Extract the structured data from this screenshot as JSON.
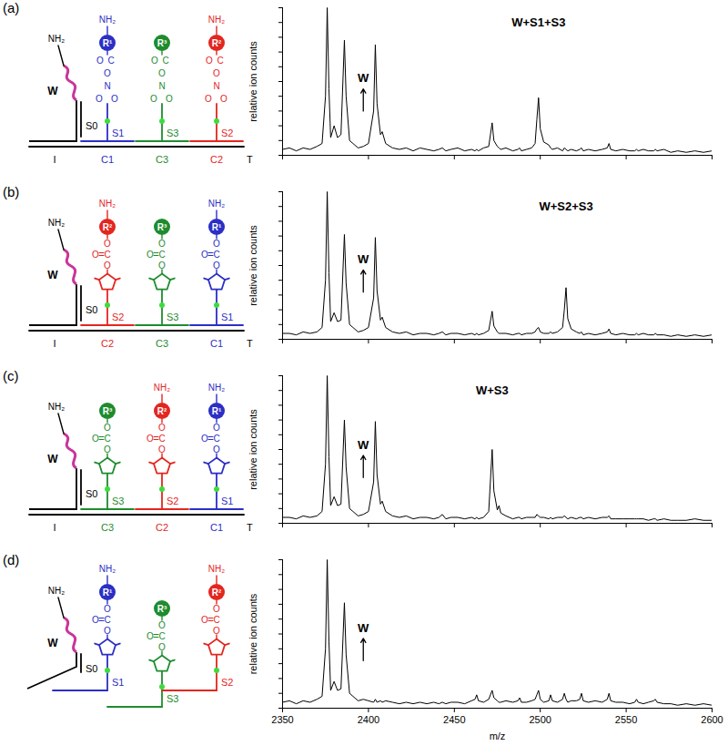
{
  "chart_data": [
    {
      "type": "line",
      "title": "(a)",
      "y_label": "relative ion counts",
      "color": "#000000",
      "xlim": [
        2350,
        2600
      ],
      "xticks": [
        2350,
        2400,
        2450,
        2500,
        2550,
        2600
      ],
      "ylim": [
        0,
        100
      ],
      "yticks": [
        0,
        10,
        20,
        30,
        40,
        50,
        60,
        70,
        80,
        90,
        100
      ],
      "tick_labels": false,
      "x": [
        2350,
        2354,
        2358,
        2362,
        2366,
        2370,
        2373,
        2375,
        2376,
        2377,
        2378,
        2380,
        2382,
        2384,
        2386,
        2387,
        2389,
        2391,
        2394,
        2397,
        2400,
        2403,
        2404,
        2405,
        2407,
        2408,
        2410,
        2414,
        2418,
        2422,
        2426,
        2430,
        2434,
        2438,
        2441,
        2443,
        2445,
        2448,
        2452,
        2456,
        2460,
        2462,
        2463,
        2464,
        2467,
        2470,
        2472,
        2473,
        2475,
        2476,
        2477,
        2480,
        2484,
        2487,
        2488,
        2489,
        2492,
        2495,
        2497,
        2498,
        2499,
        2500,
        2502,
        2505,
        2506,
        2507,
        2510,
        2513,
        2514,
        2515,
        2516,
        2518,
        2521,
        2523,
        2524,
        2525,
        2528,
        2532,
        2536,
        2539,
        2540,
        2541,
        2544,
        2548,
        2552,
        2555,
        2556,
        2557,
        2560,
        2563,
        2566,
        2567,
        2568,
        2572,
        2576,
        2580,
        2585,
        2590,
        2595,
        2600
      ],
      "values": [
        4,
        5,
        3,
        5,
        4,
        6,
        8,
        40,
        100,
        45,
        12,
        20,
        12,
        14,
        78,
        40,
        10,
        8,
        5,
        6,
        8,
        30,
        75,
        35,
        14,
        16,
        8,
        5,
        4,
        5,
        3,
        5,
        4,
        3,
        4,
        5,
        3,
        4,
        5,
        3,
        4,
        3,
        4,
        3,
        5,
        6,
        22,
        10,
        6,
        5,
        4,
        5,
        3,
        4,
        5,
        3,
        4,
        5,
        8,
        24,
        39,
        18,
        9,
        7,
        5,
        4,
        5,
        3,
        5,
        4,
        3,
        4,
        3,
        4,
        5,
        3,
        4,
        3,
        4,
        5,
        8,
        4,
        3,
        4,
        3,
        3,
        4,
        3,
        4,
        3,
        3,
        4,
        3,
        4,
        2,
        3,
        2,
        3,
        2,
        3
      ],
      "annotations": [
        {
          "text": "W",
          "x": 2397,
          "y": 52,
          "marker": "arrow"
        },
        {
          "text": "W+S1+S3",
          "x": 2499,
          "y": 90
        }
      ]
    },
    {
      "type": "line",
      "title": "(b)",
      "y_label": "relative ion counts",
      "color": "#000000",
      "xlim": [
        2350,
        2600
      ],
      "xticks": [
        2350,
        2400,
        2450,
        2500,
        2550,
        2600
      ],
      "ylim": [
        0,
        100
      ],
      "yticks": [
        0,
        10,
        20,
        30,
        40,
        50,
        60,
        70,
        80,
        90,
        100
      ],
      "tick_labels": false,
      "x": [
        2350,
        2354,
        2358,
        2362,
        2366,
        2370,
        2373,
        2375,
        2376,
        2377,
        2378,
        2380,
        2382,
        2384,
        2386,
        2387,
        2389,
        2391,
        2394,
        2397,
        2400,
        2403,
        2404,
        2405,
        2407,
        2408,
        2410,
        2414,
        2418,
        2422,
        2426,
        2430,
        2434,
        2438,
        2441,
        2443,
        2445,
        2448,
        2452,
        2456,
        2460,
        2462,
        2463,
        2464,
        2467,
        2470,
        2472,
        2473,
        2475,
        2476,
        2477,
        2480,
        2484,
        2487,
        2488,
        2489,
        2492,
        2495,
        2497,
        2498,
        2499,
        2500,
        2502,
        2505,
        2506,
        2507,
        2510,
        2513,
        2514,
        2515,
        2516,
        2518,
        2521,
        2523,
        2524,
        2525,
        2528,
        2532,
        2536,
        2539,
        2540,
        2541,
        2544,
        2548,
        2552,
        2555,
        2556,
        2557,
        2560,
        2563,
        2566,
        2567,
        2568,
        2572,
        2576,
        2580,
        2585,
        2590,
        2595,
        2600
      ],
      "values": [
        4,
        4,
        3,
        5,
        4,
        5,
        8,
        40,
        100,
        45,
        12,
        18,
        12,
        13,
        71,
        38,
        10,
        8,
        5,
        6,
        8,
        28,
        69,
        33,
        13,
        15,
        8,
        5,
        4,
        5,
        3,
        4,
        4,
        3,
        4,
        5,
        3,
        4,
        4,
        3,
        4,
        3,
        4,
        3,
        4,
        6,
        19,
        9,
        5,
        4,
        4,
        4,
        3,
        4,
        4,
        3,
        4,
        4,
        5,
        7,
        8,
        5,
        4,
        4,
        5,
        4,
        5,
        8,
        20,
        35,
        14,
        7,
        5,
        4,
        5,
        3,
        4,
        3,
        4,
        5,
        7,
        4,
        3,
        4,
        3,
        3,
        4,
        3,
        4,
        3,
        3,
        4,
        3,
        3,
        2,
        3,
        2,
        3,
        2,
        3
      ],
      "annotations": [
        {
          "text": "W",
          "x": 2397,
          "y": 54,
          "marker": "arrow"
        },
        {
          "text": "W+S2+S3",
          "x": 2515,
          "y": 90
        }
      ]
    },
    {
      "type": "line",
      "title": "(c)",
      "y_label": "relative ion counts",
      "color": "#000000",
      "xlim": [
        2350,
        2600
      ],
      "xticks": [
        2350,
        2400,
        2450,
        2500,
        2550,
        2600
      ],
      "ylim": [
        0,
        100
      ],
      "yticks": [
        0,
        10,
        20,
        30,
        40,
        50,
        60,
        70,
        80,
        90,
        100
      ],
      "tick_labels": false,
      "x": [
        2350,
        2354,
        2358,
        2362,
        2366,
        2370,
        2373,
        2375,
        2376,
        2377,
        2378,
        2380,
        2382,
        2384,
        2386,
        2387,
        2389,
        2391,
        2394,
        2397,
        2400,
        2403,
        2404,
        2405,
        2407,
        2408,
        2410,
        2414,
        2418,
        2422,
        2426,
        2430,
        2434,
        2438,
        2441,
        2443,
        2445,
        2448,
        2452,
        2456,
        2460,
        2462,
        2463,
        2464,
        2467,
        2470,
        2472,
        2473,
        2475,
        2476,
        2477,
        2480,
        2484,
        2487,
        2488,
        2489,
        2492,
        2495,
        2497,
        2498,
        2499,
        2500,
        2502,
        2505,
        2506,
        2507,
        2510,
        2513,
        2514,
        2515,
        2516,
        2518,
        2521,
        2523,
        2524,
        2525,
        2528,
        2532,
        2536,
        2539,
        2540,
        2541,
        2544,
        2548,
        2552,
        2555,
        2556,
        2557,
        2560,
        2563,
        2566,
        2567,
        2568,
        2572,
        2576,
        2580,
        2585,
        2590,
        2595,
        2600
      ],
      "values": [
        4,
        4,
        3,
        5,
        4,
        5,
        8,
        40,
        100,
        45,
        12,
        18,
        12,
        13,
        70,
        38,
        10,
        8,
        5,
        6,
        8,
        28,
        69,
        33,
        13,
        15,
        8,
        5,
        4,
        5,
        3,
        4,
        4,
        3,
        4,
        6,
        3,
        4,
        4,
        3,
        4,
        3,
        4,
        3,
        4,
        8,
        50,
        22,
        9,
        12,
        7,
        5,
        3,
        4,
        4,
        3,
        4,
        4,
        4,
        6,
        5,
        4,
        4,
        3,
        4,
        3,
        4,
        4,
        5,
        4,
        3,
        4,
        3,
        4,
        4,
        3,
        4,
        3,
        4,
        4,
        5,
        3,
        3,
        3,
        3,
        3,
        3,
        3,
        3,
        2,
        3,
        3,
        2,
        3,
        2,
        2,
        2,
        3,
        2,
        2
      ],
      "annotations": [
        {
          "text": "W",
          "x": 2397,
          "y": 53,
          "marker": "arrow"
        },
        {
          "text": "W+S3",
          "x": 2472,
          "y": 90
        }
      ]
    },
    {
      "type": "line",
      "title": "(d)",
      "y_label": "relative ion counts",
      "x_label": "m/z",
      "color": "#000000",
      "xlim": [
        2350,
        2600
      ],
      "xticks": [
        2350,
        2400,
        2450,
        2500,
        2550,
        2600
      ],
      "ylim": [
        0,
        100
      ],
      "yticks": [
        0,
        10,
        20,
        30,
        40,
        50,
        60,
        70,
        80,
        90,
        100
      ],
      "tick_labels": "x",
      "x": [
        2350,
        2354,
        2358,
        2362,
        2366,
        2370,
        2373,
        2375,
        2376,
        2377,
        2378,
        2380,
        2382,
        2384,
        2386,
        2387,
        2389,
        2391,
        2394,
        2397,
        2400,
        2403,
        2404,
        2405,
        2407,
        2408,
        2410,
        2414,
        2418,
        2422,
        2426,
        2430,
        2434,
        2438,
        2441,
        2443,
        2445,
        2448,
        2452,
        2456,
        2460,
        2462,
        2463,
        2464,
        2467,
        2470,
        2472,
        2473,
        2475,
        2476,
        2477,
        2480,
        2484,
        2487,
        2488,
        2489,
        2492,
        2495,
        2497,
        2498,
        2499,
        2500,
        2502,
        2505,
        2506,
        2507,
        2510,
        2513,
        2514,
        2515,
        2516,
        2518,
        2521,
        2523,
        2524,
        2525,
        2528,
        2532,
        2536,
        2539,
        2540,
        2541,
        2544,
        2548,
        2552,
        2555,
        2556,
        2557,
        2560,
        2563,
        2566,
        2567,
        2568,
        2572,
        2576,
        2580,
        2585,
        2590,
        2595,
        2600
      ],
      "values": [
        4,
        5,
        3,
        5,
        4,
        6,
        8,
        40,
        100,
        45,
        12,
        18,
        12,
        13,
        71,
        36,
        10,
        8,
        5,
        6,
        5,
        4,
        6,
        4,
        5,
        4,
        5,
        4,
        3,
        4,
        3,
        4,
        3,
        4,
        3,
        4,
        3,
        4,
        4,
        3,
        5,
        6,
        9,
        5,
        4,
        6,
        12,
        7,
        5,
        4,
        4,
        5,
        4,
        5,
        7,
        4,
        4,
        5,
        6,
        9,
        12,
        6,
        4,
        5,
        9,
        5,
        4,
        6,
        10,
        6,
        4,
        5,
        5,
        6,
        10,
        5,
        4,
        5,
        4,
        6,
        10,
        5,
        4,
        4,
        3,
        4,
        6,
        4,
        3,
        4,
        5,
        6,
        4,
        3,
        3,
        2,
        3,
        2,
        3,
        2
      ],
      "annotations": [
        {
          "text": "W",
          "x": 2397,
          "y": 54,
          "marker": "arrow"
        }
      ]
    }
  ],
  "schematics": [
    {
      "template": {
        "label": "T",
        "segments": [
          {
            "label": "I",
            "color": "#000000"
          },
          {
            "label": "C1",
            "color": "#2b2fc4"
          },
          {
            "label": "C3",
            "color": "#1e8c2e"
          },
          {
            "label": "C2",
            "color": "#e3261f"
          }
        ]
      },
      "anchor": {
        "strand": "S0",
        "loop": "W",
        "amine": "NH₂",
        "color": "#c8359b"
      },
      "strands": [
        {
          "label": "S1",
          "color": "#2b2fc4",
          "reagent": "R¹",
          "amine": "NH₂",
          "linker": [
            "O",
            "C",
            "O",
            "N",
            "O",
            "O"
          ]
        },
        {
          "label": "S3",
          "color": "#1e8c2e",
          "reagent": "R³",
          "linker": [
            "O",
            "C",
            "O",
            "N",
            "O",
            "O"
          ]
        },
        {
          "label": "S2",
          "color": "#e3261f",
          "reagent": "R²",
          "amine": "NH₂",
          "linker": [
            "O",
            "C",
            "O",
            "N",
            "O",
            "O"
          ]
        }
      ]
    },
    {
      "template": {
        "label": "T",
        "segments": [
          {
            "label": "I",
            "color": "#000000"
          },
          {
            "label": "C2",
            "color": "#e3261f"
          },
          {
            "label": "C3",
            "color": "#1e8c2e"
          },
          {
            "label": "C1",
            "color": "#2b2fc4"
          }
        ]
      },
      "anchor": {
        "strand": "S0",
        "loop": "W",
        "amine": "NH₂",
        "color": "#c8359b"
      },
      "strands": [
        {
          "label": "S2",
          "color": "#e3261f",
          "reagent": "R²",
          "amine": "NH₂",
          "linker": [
            "O",
            "O",
            "C",
            "O"
          ]
        },
        {
          "label": "S3",
          "color": "#1e8c2e",
          "reagent": "R³",
          "linker": [
            "O",
            "O",
            "C",
            "O"
          ]
        },
        {
          "label": "S1",
          "color": "#2b2fc4",
          "reagent": "R¹",
          "amine": "NH₂",
          "linker": [
            "O",
            "O",
            "C",
            "O"
          ]
        }
      ]
    },
    {
      "template": {
        "label": "T",
        "segments": [
          {
            "label": "I",
            "color": "#000000"
          },
          {
            "label": "C3",
            "color": "#1e8c2e"
          },
          {
            "label": "C2",
            "color": "#e3261f"
          },
          {
            "label": "C1",
            "color": "#2b2fc4"
          }
        ]
      },
      "anchor": {
        "strand": "S0",
        "loop": "W",
        "amine": "NH₂",
        "color": "#c8359b"
      },
      "strands": [
        {
          "label": "S3",
          "color": "#1e8c2e",
          "reagent": "R³",
          "linker": [
            "O",
            "O",
            "C",
            "O"
          ]
        },
        {
          "label": "S2",
          "color": "#e3261f",
          "reagent": "R²",
          "amine": "NH₂",
          "linker": [
            "O",
            "O",
            "C",
            "O"
          ]
        },
        {
          "label": "S1",
          "color": "#2b2fc4",
          "reagent": "R¹",
          "amine": "NH₂",
          "linker": [
            "O",
            "O",
            "C",
            "O"
          ]
        }
      ]
    },
    {
      "anchor": {
        "strand": "S0",
        "loop": "W",
        "amine": "NH₂",
        "color": "#c8359b"
      },
      "strands": [
        {
          "label": "S1",
          "color": "#2b2fc4",
          "reagent": "R¹",
          "amine": "NH₂",
          "linker": [
            "O",
            "O",
            "C",
            "O"
          ]
        },
        {
          "label": "S3",
          "color": "#1e8c2e",
          "reagent": "R³",
          "linker": [
            "O",
            "O",
            "C",
            "O"
          ]
        },
        {
          "label": "S2",
          "color": "#e3261f",
          "reagent": "R²",
          "amine": "NH₂",
          "linker": [
            "O",
            "O",
            "C",
            "O"
          ]
        }
      ]
    }
  ]
}
